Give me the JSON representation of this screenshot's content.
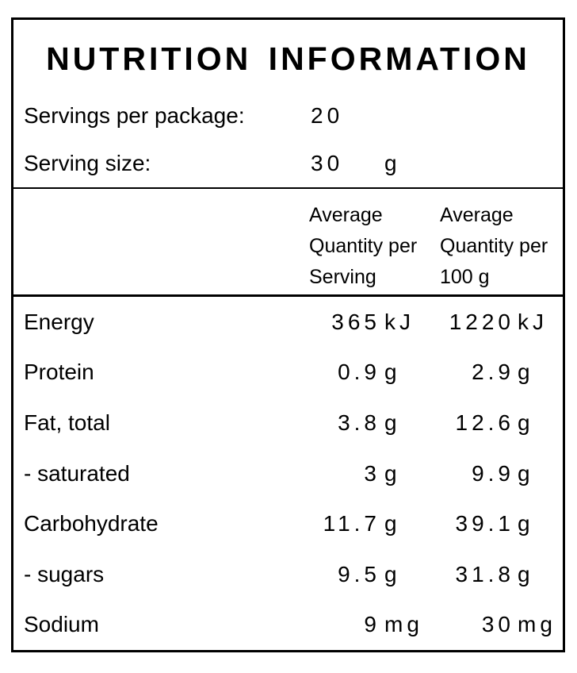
{
  "title": "NUTRITION INFORMATION",
  "serving_info": {
    "rows": [
      {
        "label": "Servings per package:",
        "value": "20",
        "unit": ""
      },
      {
        "label": "Serving size:",
        "value": "30",
        "unit": "g"
      }
    ]
  },
  "header": {
    "col_per_serving": {
      "line1": "Average",
      "line2": "Quantity per",
      "line3": "Serving"
    },
    "col_per_100g": {
      "line1": "Average",
      "line2": "Quantity per",
      "line3": "100 g"
    }
  },
  "nutrients": {
    "rows": [
      {
        "label": "Energy",
        "qty_serving": "365",
        "unit_serving": "kJ",
        "qty_100g": "1220",
        "unit_100g": "kJ"
      },
      {
        "label": "Protein",
        "qty_serving": "0.9",
        "unit_serving": "g",
        "qty_100g": "2.9",
        "unit_100g": "g"
      },
      {
        "label": "Fat, total",
        "qty_serving": "3.8",
        "unit_serving": "g",
        "qty_100g": "12.6",
        "unit_100g": "g"
      },
      {
        "label": "- saturated",
        "qty_serving": "3",
        "unit_serving": "g",
        "qty_100g": "9.9",
        "unit_100g": "g"
      },
      {
        "label": "Carbohydrate",
        "qty_serving": "11.7",
        "unit_serving": "g",
        "qty_100g": "39.1",
        "unit_100g": "g"
      },
      {
        "label": "- sugars",
        "qty_serving": "9.5",
        "unit_serving": "g",
        "qty_100g": "31.8",
        "unit_100g": "g"
      },
      {
        "label": "Sodium",
        "qty_serving": "9",
        "unit_serving": "mg",
        "qty_100g": "30",
        "unit_100g": "mg"
      }
    ]
  },
  "colors": {
    "text": "#000000",
    "background": "#ffffff",
    "border": "#000000"
  }
}
